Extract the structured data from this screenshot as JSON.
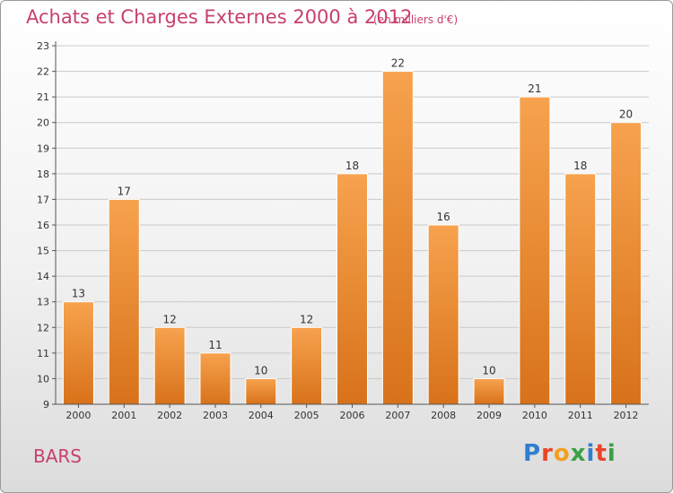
{
  "header": {
    "title": "Achats et Charges Externes 2000 à 2012",
    "unit": "(en milliers d'€)"
  },
  "footer": {
    "commune": "BARS",
    "logo_text": "Proxiti",
    "logo_colors": [
      "#2f7fd0",
      "#e8452a",
      "#f0a020",
      "#3aa046",
      "#2f7fd0",
      "#e8452a",
      "#3aa046"
    ]
  },
  "colors": {
    "bar_top": "#f7a24e",
    "bar_bottom": "#d8721a",
    "accent": "#c8406c"
  },
  "chart_data": {
    "type": "bar",
    "title": "Achats et Charges Externes 2000 à 2012",
    "subtitle": "(en milliers d'€)",
    "xlabel": "",
    "ylabel": "",
    "categories": [
      "2000",
      "2001",
      "2002",
      "2003",
      "2004",
      "2005",
      "2006",
      "2007",
      "2008",
      "2009",
      "2010",
      "2011",
      "2012"
    ],
    "values": [
      13,
      17,
      12,
      11,
      10,
      12,
      18,
      22,
      16,
      10,
      21,
      18,
      20
    ],
    "ylim": [
      9,
      23
    ],
    "yticks": [
      9,
      10,
      11,
      12,
      13,
      14,
      15,
      16,
      17,
      18,
      19,
      20,
      21,
      22,
      23
    ],
    "grid": true,
    "legend": "none"
  }
}
